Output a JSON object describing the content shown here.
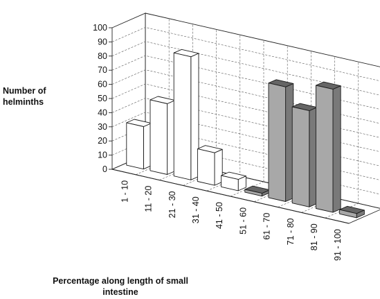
{
  "chart_data": {
    "type": "bar",
    "title": "",
    "ylabel_lines": [
      "Number of",
      "helminths"
    ],
    "xlabel_lines": [
      "Percentage along length of small",
      "intestine"
    ],
    "yticks": [
      "0",
      "10",
      "20",
      "30",
      "40",
      "50",
      "60",
      "70",
      "80",
      "90",
      "100"
    ],
    "ylim": [
      0,
      100
    ],
    "categories": [
      "1 - 10",
      "11 - 20",
      "21 - 30",
      "31 - 40",
      "41 - 50",
      "51 - 60",
      "61 - 70",
      "71 - 80",
      "81 - 90",
      "91 - 100"
    ],
    "series": [
      {
        "values": [
          30,
          50,
          87,
          23,
          8,
          0,
          0,
          0,
          0,
          0
        ],
        "color": "#ffffff"
      },
      {
        "values": [
          0,
          0,
          0,
          0,
          0,
          2,
          81,
          68,
          87,
          3
        ],
        "color": "#a8a8a8"
      }
    ],
    "grid": true,
    "legend": "none"
  }
}
